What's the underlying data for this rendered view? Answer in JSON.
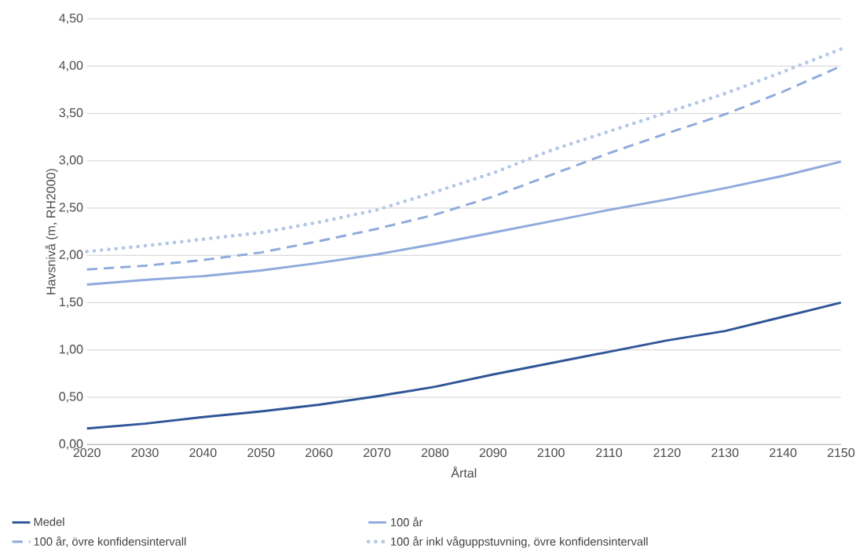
{
  "chart_data": {
    "type": "line",
    "xlabel": "Årtal",
    "ylabel": "Havsnivå (m, RH2000)",
    "x": [
      2020,
      2030,
      2040,
      2050,
      2060,
      2070,
      2080,
      2090,
      2100,
      2110,
      2120,
      2130,
      2140,
      2150
    ],
    "xlim": [
      2020,
      2150
    ],
    "xticks": [
      2020,
      2030,
      2040,
      2050,
      2060,
      2070,
      2080,
      2090,
      2100,
      2110,
      2120,
      2130,
      2140,
      2150
    ],
    "ylim": [
      0,
      4.5
    ],
    "yticks": [
      {
        "value": 0,
        "label": "0,00"
      },
      {
        "value": 0.5,
        "label": "0,50"
      },
      {
        "value": 1,
        "label": "1,00"
      },
      {
        "value": 1.5,
        "label": "1,50"
      },
      {
        "value": 2,
        "label": "2,00"
      },
      {
        "value": 2.5,
        "label": "2,50"
      },
      {
        "value": 3,
        "label": "3,00"
      },
      {
        "value": 3.5,
        "label": "3,50"
      },
      {
        "value": 4,
        "label": "4,00"
      },
      {
        "value": 4.5,
        "label": "4,50"
      }
    ],
    "grid": "y",
    "legend": "bottom",
    "marker": "none",
    "series": [
      {
        "name": "Medel",
        "color": "#2f5597",
        "line_style": "solid",
        "values": [
          0.17,
          0.22,
          0.29,
          0.35,
          0.42,
          0.51,
          0.61,
          0.74,
          0.86,
          0.98,
          1.1,
          1.2,
          1.35,
          1.5
        ]
      },
      {
        "name": "100 år",
        "color": "#8faadc",
        "line_style": "solid",
        "values": [
          1.69,
          1.74,
          1.78,
          1.84,
          1.92,
          2.01,
          2.12,
          2.24,
          2.36,
          2.48,
          2.59,
          2.71,
          2.84,
          2.99
        ]
      },
      {
        "name": "100 år, övre konfidensintervall",
        "color": "#8faadc",
        "line_style": "dashed",
        "values": [
          1.85,
          1.89,
          1.95,
          2.03,
          2.15,
          2.28,
          2.43,
          2.62,
          2.85,
          3.08,
          3.29,
          3.49,
          3.73,
          4.0
        ]
      },
      {
        "name": "100 år inkl våguppstuvning, övre konfidensintervall",
        "color": "#b4c7e7",
        "line_style": "dotted",
        "values": [
          2.04,
          2.1,
          2.17,
          2.24,
          2.35,
          2.48,
          2.67,
          2.87,
          3.11,
          3.31,
          3.51,
          3.71,
          3.94,
          4.18
        ]
      }
    ]
  }
}
